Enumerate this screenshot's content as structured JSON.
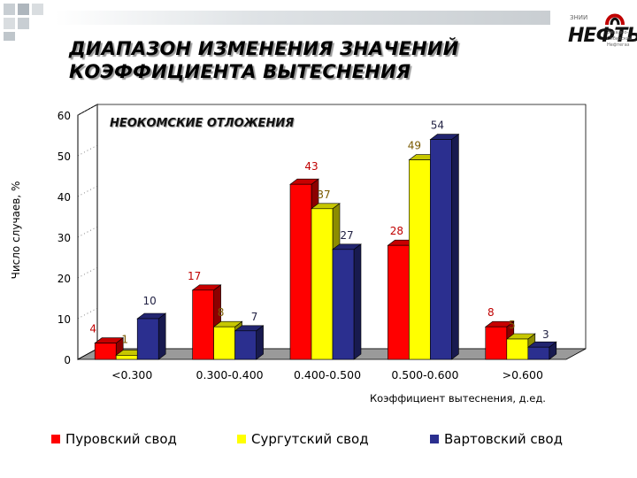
{
  "slide": {
    "title_line1": "ДИАПАЗОН ИЗМЕНЕНИЯ ЗНАЧЕНИЙ",
    "title_line2": "КОЭФФИЦИЕНТА ВЫТЕСНЕНИЯ"
  },
  "logo": {
    "top_text": "ЗНИИ",
    "brand": "НЕФТЬ",
    "right_text_1": "Западно-",
    "right_text_2": "Сибирский",
    "right_text_3": "Нефтегаз"
  },
  "colors": {
    "series1": "#ff0000",
    "series2": "#ffff00",
    "series3": "#2b2f8f",
    "label_red": "#c00000"
  },
  "chart_data": {
    "type": "bar",
    "title": "НЕОКОМСКИЕ ОТЛОЖЕНИЯ",
    "xlabel": "Коэффициент вытеснения, д.ед.",
    "ylabel": "Число случаев, %",
    "ylim": [
      0,
      60
    ],
    "yticks": [
      0,
      10,
      20,
      30,
      40,
      50,
      60
    ],
    "categories": [
      "<0.300",
      "0.300-0.400",
      "0.400-0.500",
      "0.500-0.600",
      ">0.600"
    ],
    "series": [
      {
        "name": "Пуровский свод",
        "color": "#ff0000",
        "values": [
          4,
          17,
          43,
          28,
          8
        ]
      },
      {
        "name": "Сургутский свод",
        "color": "#ffff00",
        "values": [
          1,
          8,
          37,
          49,
          5
        ]
      },
      {
        "name": "Вартовский свод",
        "color": "#2b2f8f",
        "values": [
          10,
          7,
          27,
          54,
          3
        ]
      }
    ],
    "grid": true,
    "legend_position": "bottom",
    "style": "3d"
  }
}
